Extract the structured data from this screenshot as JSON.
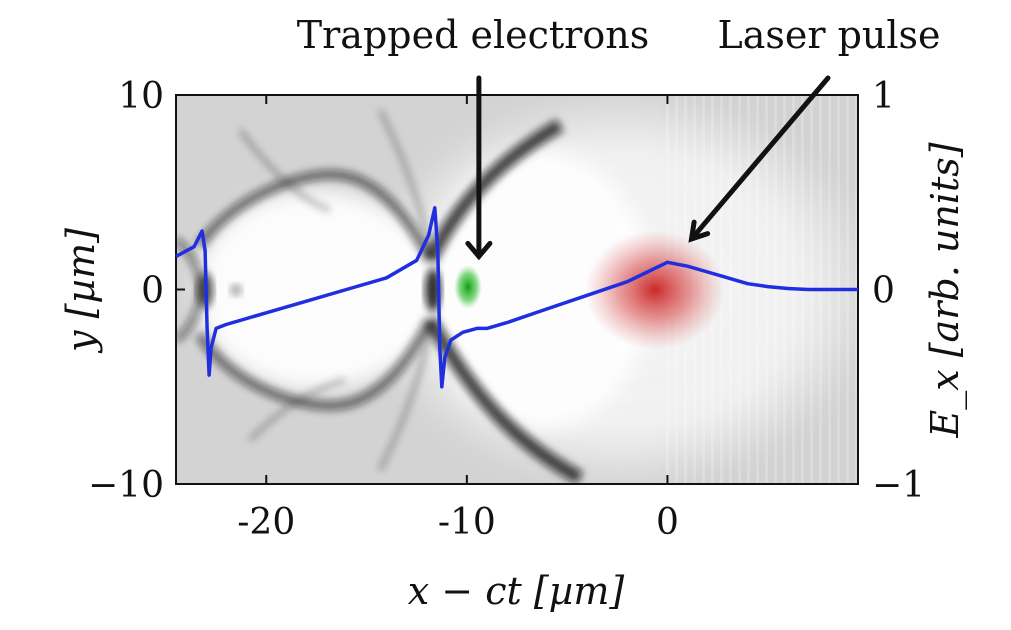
{
  "chart_data": {
    "type": "heatmap",
    "xlabel": "x − ct [µm]",
    "ylabel_left": "y [µm]",
    "ylabel_right": "E_x [arb. units]",
    "xlim": [
      -24.5,
      9.5
    ],
    "ylim_left": [
      -10,
      10
    ],
    "ylim_right": [
      -1,
      1
    ],
    "x_ticks": [
      {
        "value": -20,
        "label": "-20"
      },
      {
        "value": -10,
        "label": "-10"
      },
      {
        "value": 0,
        "label": "0"
      }
    ],
    "y_left_ticks": [
      {
        "value": 10,
        "label": "10"
      },
      {
        "value": 0,
        "label": "0"
      },
      {
        "value": -10,
        "label": "−10"
      }
    ],
    "y_right_ticks": [
      {
        "value": 1,
        "label": "1"
      },
      {
        "value": 0,
        "label": "0"
      },
      {
        "value": -1,
        "label": "−1"
      }
    ],
    "annotations": [
      {
        "text": "Trapped electrons",
        "target_x": -9.4,
        "target_y": 1.7
      },
      {
        "text": "Laser pulse",
        "target_x": 1.2,
        "target_y": 2.6
      }
    ],
    "series": [
      {
        "color": "#1f2fe0",
        "axis": "right",
        "points": [
          [
            -24.5,
            0.17
          ],
          [
            -23.6,
            0.22
          ],
          [
            -23.2,
            0.3
          ],
          [
            -23.05,
            0.2
          ],
          [
            -22.95,
            -0.2
          ],
          [
            -22.85,
            -0.44
          ],
          [
            -22.75,
            -0.3
          ],
          [
            -22.5,
            -0.2
          ],
          [
            -22.0,
            -0.18
          ],
          [
            -20.0,
            -0.12
          ],
          [
            -18.0,
            -0.06
          ],
          [
            -16.0,
            0.0
          ],
          [
            -14.0,
            0.06
          ],
          [
            -12.5,
            0.15
          ],
          [
            -11.9,
            0.28
          ],
          [
            -11.6,
            0.42
          ],
          [
            -11.45,
            0.2
          ],
          [
            -11.35,
            -0.3
          ],
          [
            -11.25,
            -0.5
          ],
          [
            -11.1,
            -0.35
          ],
          [
            -10.8,
            -0.26
          ],
          [
            -10.2,
            -0.22
          ],
          [
            -9.5,
            -0.2
          ],
          [
            -9.0,
            -0.2
          ],
          [
            -8.0,
            -0.17
          ],
          [
            -6.0,
            -0.1
          ],
          [
            -4.0,
            -0.03
          ],
          [
            -2.0,
            0.04
          ],
          [
            -1.0,
            0.09
          ],
          [
            0.0,
            0.14
          ],
          [
            1.0,
            0.12
          ],
          [
            2.0,
            0.09
          ],
          [
            3.0,
            0.06
          ],
          [
            4.0,
            0.03
          ],
          [
            5.0,
            0.015
          ],
          [
            6.0,
            0.005
          ],
          [
            7.0,
            0.0
          ],
          [
            9.5,
            0.0
          ]
        ]
      }
    ],
    "features": {
      "background_colormap": "grayscale",
      "laser_pulse": {
        "color": "#c82020",
        "center_x": 0,
        "center_y": 0
      },
      "trapped_electrons": {
        "color": "#1aa01a",
        "center_x": -9.5,
        "center_y": 0
      }
    }
  }
}
